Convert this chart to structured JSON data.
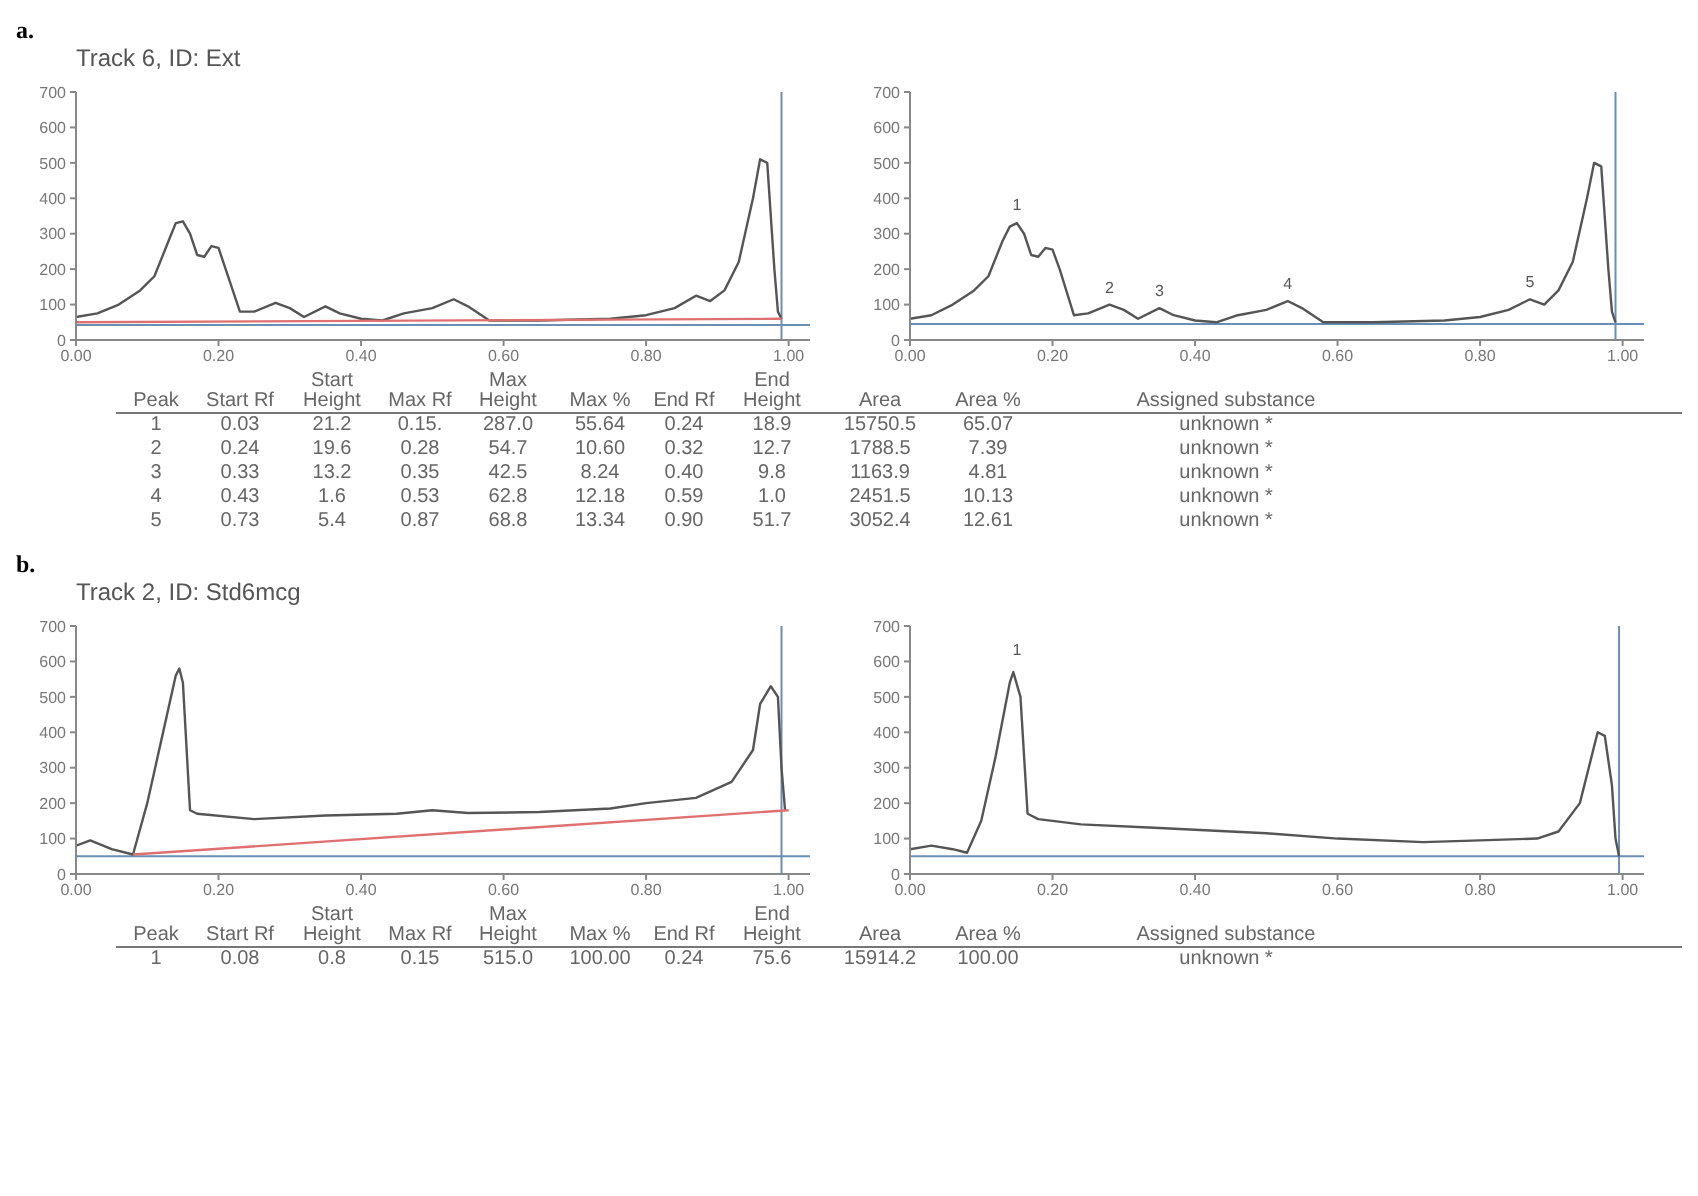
{
  "chart_data": [
    {
      "type": "line",
      "title": "a.",
      "subtitle": "Track 6, ID: Ext",
      "x": [
        0,
        0.03,
        0.06,
        0.09,
        0.11,
        0.13,
        0.14,
        0.15,
        0.16,
        0.17,
        0.18,
        0.19,
        0.2,
        0.21,
        0.23,
        0.25,
        0.28,
        0.3,
        0.32,
        0.35,
        0.37,
        0.4,
        0.43,
        0.46,
        0.5,
        0.53,
        0.55,
        0.58,
        0.65,
        0.75,
        0.8,
        0.84,
        0.87,
        0.89,
        0.91,
        0.93,
        0.95,
        0.96,
        0.97,
        0.98,
        0.985,
        0.99
      ],
      "series": [
        {
          "color": "#555555",
          "values": [
            65,
            75,
            100,
            140,
            180,
            280,
            330,
            335,
            300,
            240,
            235,
            265,
            260,
            200,
            80,
            80,
            105,
            90,
            65,
            95,
            75,
            60,
            55,
            75,
            90,
            115,
            95,
            55,
            55,
            60,
            70,
            90,
            125,
            110,
            140,
            220,
            400,
            510,
            500,
            200,
            80,
            60
          ]
        },
        {
          "type": "line",
          "color": "#e07070",
          "x": [
            0,
            0.99
          ],
          "values": [
            50,
            60
          ]
        }
      ],
      "xlim": [
        0,
        1.03
      ],
      "xticks": [
        {
          "value": 0,
          "label": "0.00"
        },
        {
          "value": 0.2,
          "label": "0.20"
        },
        {
          "value": 0.4,
          "label": "0.40"
        },
        {
          "value": 0.6,
          "label": "0.60"
        },
        {
          "value": 0.8,
          "label": "0.80"
        },
        {
          "value": 1,
          "label": "1.00"
        }
      ],
      "ylim": [
        0,
        700
      ],
      "yticks": [
        0,
        100,
        200,
        300,
        400,
        500,
        600,
        700
      ],
      "ref_lines": [
        {
          "axis": "y",
          "value": 42,
          "color": "#6a8fb5"
        },
        {
          "axis": "x",
          "value": 0.99,
          "color": "#6a8fb5"
        }
      ],
      "annotations": [
        "Peak  Start Rf  Start Height  Max Rf  Max Height  Max %  End Rf  End Height  Area  Area %  Assigned substance",
        "1  0.03  21.2  0.15.  287.0  55.64  0.24  18.9  15750.5  65.07  unknown *",
        "2  0.24  19.6  0.28  54.7  10.60  0.32  12.7  1788.5  7.39  unknown *",
        "3  0.33  13.2  0.35  42.5  8.24  0.40  9.8  1163.9  4.81  unknown *",
        "4  0.43  1.6  0.53  62.8  12.18  0.59  1.0  2451.5  10.13  unknown *",
        "5  0.73  5.4  0.87  68.8  13.34  0.90  51.7  3052.4  12.61  unknown *"
      ]
    },
    {
      "type": "line",
      "x": [
        0,
        0.03,
        0.06,
        0.09,
        0.11,
        0.13,
        0.14,
        0.15,
        0.16,
        0.17,
        0.18,
        0.19,
        0.2,
        0.21,
        0.23,
        0.25,
        0.28,
        0.3,
        0.32,
        0.35,
        0.37,
        0.4,
        0.43,
        0.46,
        0.5,
        0.53,
        0.55,
        0.58,
        0.65,
        0.75,
        0.8,
        0.84,
        0.87,
        0.89,
        0.91,
        0.93,
        0.95,
        0.96,
        0.97,
        0.98,
        0.985,
        0.99
      ],
      "series": [
        {
          "color": "#555555",
          "values": [
            60,
            70,
            100,
            140,
            180,
            280,
            320,
            330,
            300,
            240,
            235,
            260,
            255,
            200,
            70,
            75,
            100,
            85,
            60,
            90,
            70,
            55,
            50,
            70,
            85,
            110,
            90,
            50,
            50,
            55,
            65,
            85,
            115,
            100,
            140,
            220,
            400,
            500,
            490,
            200,
            80,
            50
          ]
        }
      ],
      "xlim": [
        0,
        1.03
      ],
      "xticks": [
        {
          "value": 0,
          "label": "0.00"
        },
        {
          "value": 0.2,
          "label": "0.20"
        },
        {
          "value": 0.4,
          "label": "0.40"
        },
        {
          "value": 0.6,
          "label": "0.60"
        },
        {
          "value": 0.8,
          "label": "0.80"
        },
        {
          "value": 1,
          "label": "1.00"
        }
      ],
      "ylim": [
        0,
        700
      ],
      "yticks": [
        0,
        100,
        200,
        300,
        400,
        500,
        600,
        700
      ],
      "ref_lines": [
        {
          "axis": "y",
          "value": 45,
          "color": "#6a8fb5"
        },
        {
          "axis": "x",
          "value": 0.99,
          "color": "#6a8fb5"
        }
      ],
      "annotations": [
        {
          "text": "1",
          "x": 0.15,
          "y": 340
        },
        {
          "text": "2",
          "x": 0.28,
          "y": 105
        },
        {
          "text": "3",
          "x": 0.35,
          "y": 95
        },
        {
          "text": "4",
          "x": 0.53,
          "y": 115
        },
        {
          "text": "5",
          "x": 0.87,
          "y": 120
        }
      ]
    },
    {
      "type": "line",
      "title": "b.",
      "subtitle": "Track 2, ID: Std6mcg",
      "x": [
        0,
        0.02,
        0.05,
        0.08,
        0.1,
        0.12,
        0.14,
        0.145,
        0.15,
        0.16,
        0.17,
        0.25,
        0.35,
        0.45,
        0.5,
        0.55,
        0.65,
        0.75,
        0.8,
        0.87,
        0.92,
        0.95,
        0.96,
        0.975,
        0.985,
        0.99,
        0.995
      ],
      "series": [
        {
          "color": "#555555",
          "values": [
            80,
            95,
            70,
            55,
            200,
            380,
            560,
            580,
            540,
            180,
            170,
            155,
            165,
            170,
            180,
            172,
            175,
            185,
            200,
            215,
            260,
            350,
            480,
            530,
            500,
            300,
            180
          ]
        },
        {
          "type": "line",
          "color": "#e07070",
          "x": [
            0.08,
            1
          ],
          "values": [
            55,
            180
          ]
        }
      ],
      "xlim": [
        0,
        1.03
      ],
      "xticks": [
        {
          "value": 0,
          "label": "0.00"
        },
        {
          "value": 0.2,
          "label": "0.20"
        },
        {
          "value": 0.4,
          "label": "0.40"
        },
        {
          "value": 0.6,
          "label": "0.60"
        },
        {
          "value": 0.8,
          "label": "0.80"
        },
        {
          "value": 1,
          "label": "1.00"
        }
      ],
      "ylim": [
        0,
        700
      ],
      "yticks": [
        0,
        100,
        200,
        300,
        400,
        500,
        600,
        700
      ],
      "ref_lines": [
        {
          "axis": "y",
          "value": 50,
          "color": "#6a8fb5"
        },
        {
          "axis": "x",
          "value": 0.99,
          "color": "#6a8fb5"
        }
      ],
      "annotations": [
        "Peak  Start Rf  Start Height  Max Rf  Max Height  Max %  End Rf  End Height  Area  Area %  Assigned substance",
        "1  0.08  0.8  0.15  515.0  100.00  0.24  75.6  15914.2  100.00  unknown *"
      ]
    },
    {
      "type": "line",
      "x": [
        0,
        0.03,
        0.06,
        0.08,
        0.1,
        0.12,
        0.14,
        0.145,
        0.155,
        0.165,
        0.18,
        0.24,
        0.35,
        0.5,
        0.6,
        0.72,
        0.8,
        0.88,
        0.91,
        0.94,
        0.955,
        0.965,
        0.975,
        0.985,
        0.99,
        0.995
      ],
      "series": [
        {
          "color": "#555555",
          "values": [
            70,
            80,
            70,
            60,
            150,
            330,
            540,
            570,
            500,
            170,
            155,
            140,
            130,
            115,
            100,
            90,
            95,
            100,
            120,
            200,
            320,
            400,
            390,
            250,
            100,
            50
          ]
        }
      ],
      "xlim": [
        0,
        1.03
      ],
      "xticks": [
        {
          "value": 0,
          "label": "0.00"
        },
        {
          "value": 0.2,
          "label": "0.20"
        },
        {
          "value": 0.4,
          "label": "0.40"
        },
        {
          "value": 0.6,
          "label": "0.60"
        },
        {
          "value": 0.8,
          "label": "0.80"
        },
        {
          "value": 1,
          "label": "1.00"
        }
      ],
      "ylim": [
        0,
        700
      ],
      "yticks": [
        0,
        100,
        200,
        300,
        400,
        500,
        600,
        700
      ],
      "ref_lines": [
        {
          "axis": "y",
          "value": 50,
          "color": "#6a8fb5"
        },
        {
          "axis": "x",
          "value": 0.995,
          "color": "#6a8fb5"
        }
      ],
      "annotations": [
        {
          "text": "1",
          "x": 0.15,
          "y": 590
        }
      ]
    }
  ]
}
